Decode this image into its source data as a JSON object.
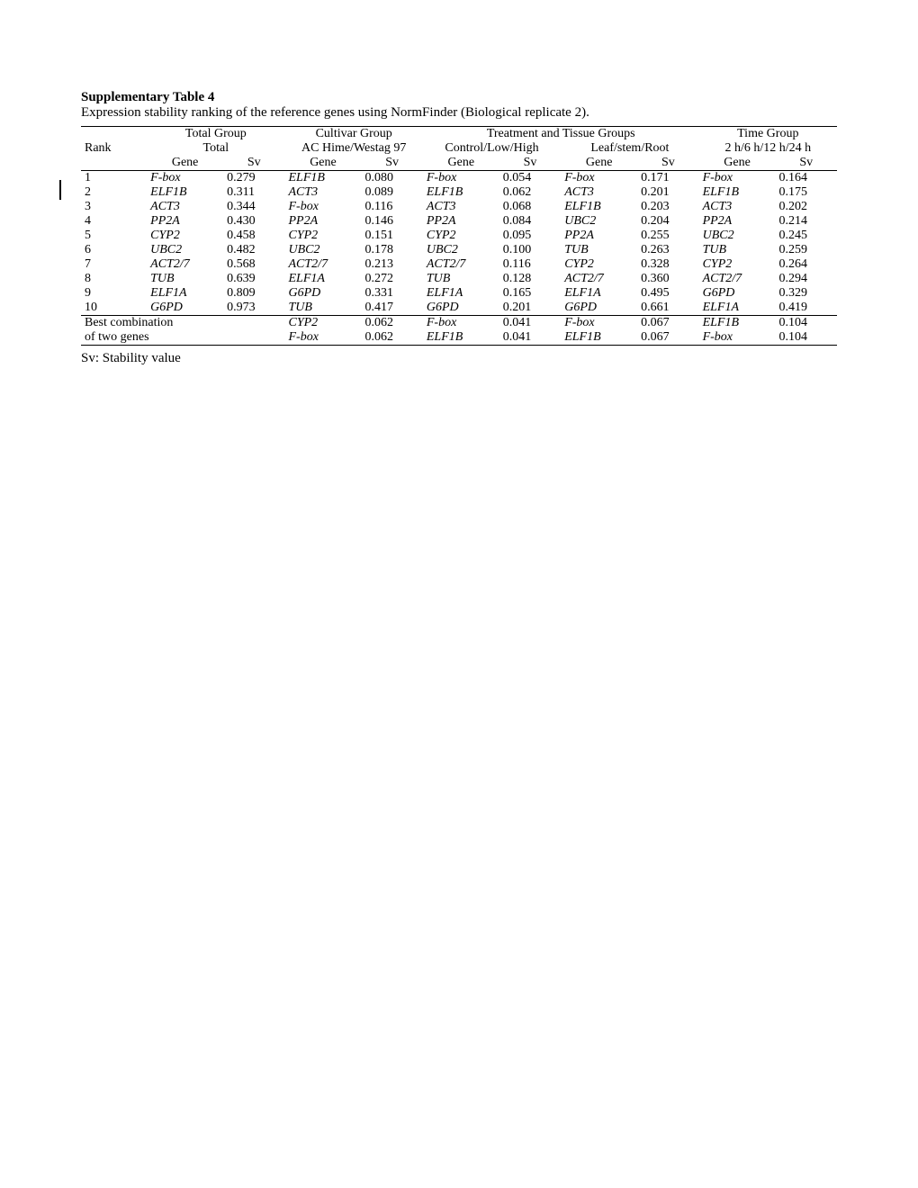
{
  "title": "Supplementary Table 4",
  "subtitle": "Expression stability ranking of the reference genes using NormFinder (Biological replicate 2).",
  "footnote": "Sv: Stability value",
  "top_headers": {
    "rank": "Rank",
    "total_group": "Total Group",
    "cultivar_group": "Cultivar Group",
    "treatment_tissue_groups": "Treatment and Tissue Groups",
    "time_group": "Time Group"
  },
  "sub_headers": {
    "total": "Total",
    "cultivar": "AC Hime/Westag 97",
    "control": "Control/Low/High",
    "leaf": "Leaf/stem/Root",
    "time": "2 h/6 h/12 h/24 h"
  },
  "col_labels": {
    "gene": "Gene",
    "sv": "Sv"
  },
  "rows": [
    {
      "rank": "1",
      "g1": "F-box",
      "s1": "0.279",
      "g2": "ELF1B",
      "s2": "0.080",
      "g3": "F-box",
      "s3": "0.054",
      "g4": "F-box",
      "s4": "0.171",
      "g5": "F-box",
      "s5": "0.164"
    },
    {
      "rank": "2",
      "g1": "ELF1B",
      "s1": "0.311",
      "g2": "ACT3",
      "s2": "0.089",
      "g3": "ELF1B",
      "s3": "0.062",
      "g4": "ACT3",
      "s4": "0.201",
      "g5": "ELF1B",
      "s5": "0.175"
    },
    {
      "rank": "3",
      "g1": "ACT3",
      "s1": "0.344",
      "g2": "F-box",
      "s2": "0.116",
      "g3": "ACT3",
      "s3": "0.068",
      "g4": "ELF1B",
      "s4": "0.203",
      "g5": "ACT3",
      "s5": "0.202"
    },
    {
      "rank": "4",
      "g1": "PP2A",
      "s1": "0.430",
      "g2": "PP2A",
      "s2": "0.146",
      "g3": "PP2A",
      "s3": "0.084",
      "g4": "UBC2",
      "s4": "0.204",
      "g5": "PP2A",
      "s5": "0.214"
    },
    {
      "rank": "5",
      "g1": "CYP2",
      "s1": "0.458",
      "g2": "CYP2",
      "s2": "0.151",
      "g3": "CYP2",
      "s3": "0.095",
      "g4": "PP2A",
      "s4": "0.255",
      "g5": "UBC2",
      "s5": "0.245"
    },
    {
      "rank": "6",
      "g1": "UBC2",
      "s1": "0.482",
      "g2": "UBC2",
      "s2": "0.178",
      "g3": "UBC2",
      "s3": "0.100",
      "g4": "TUB",
      "s4": "0.263",
      "g5": "TUB",
      "s5": "0.259"
    },
    {
      "rank": "7",
      "g1": "ACT2/7",
      "s1": "0.568",
      "g2": "ACT2/7",
      "s2": "0.213",
      "g3": "ACT2/7",
      "s3": "0.116",
      "g4": "CYP2",
      "s4": "0.328",
      "g5": "CYP2",
      "s5": "0.264"
    },
    {
      "rank": "8",
      "g1": "TUB",
      "s1": "0.639",
      "g2": "ELF1A",
      "s2": "0.272",
      "g3": "TUB",
      "s3": "0.128",
      "g4": "ACT2/7",
      "s4": "0.360",
      "g5": "ACT2/7",
      "s5": "0.294"
    },
    {
      "rank": "9",
      "g1": "ELF1A",
      "s1": "0.809",
      "g2": "G6PD",
      "s2": "0.331",
      "g3": "ELF1A",
      "s3": "0.165",
      "g4": "ELF1A",
      "s4": "0.495",
      "g5": "G6PD",
      "s5": "0.329"
    },
    {
      "rank": "10",
      "g1": "G6PD",
      "s1": "0.973",
      "g2": "TUB",
      "s2": "0.417",
      "g3": "G6PD",
      "s3": "0.201",
      "g4": "G6PD",
      "s4": "0.661",
      "g5": "ELF1A",
      "s5": "0.419"
    }
  ],
  "best": {
    "label1": "Best combination",
    "label2": "of two genes",
    "r1": {
      "g2": "CYP2",
      "s2": "0.062",
      "g3": "F-box",
      "s3": "0.041",
      "g4": "F-box",
      "s4": "0.067",
      "g5": "ELF1B",
      "s5": "0.104"
    },
    "r2": {
      "g2": "F-box",
      "s2": "0.062",
      "g3": "ELF1B",
      "s3": "0.041",
      "g4": "ELF1B",
      "s4": "0.067",
      "g5": "F-box",
      "s5": "0.104"
    }
  }
}
